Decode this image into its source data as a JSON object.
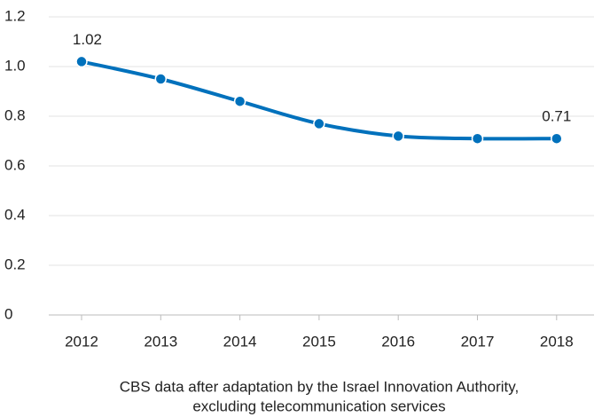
{
  "chart_data": {
    "type": "line",
    "categories": [
      "2012",
      "2013",
      "2014",
      "2015",
      "2016",
      "2017",
      "2018"
    ],
    "series": [
      {
        "color": "#0071bc",
        "values": [
          1.02,
          0.95,
          0.86,
          0.77,
          0.72,
          0.71,
          0.71
        ],
        "value_labels": [
          "1.02",
          null,
          null,
          null,
          null,
          null,
          "0.71"
        ]
      }
    ],
    "ylim": [
      0,
      1.2
    ],
    "yticks": [
      0,
      0.2,
      0.4,
      0.6,
      0.8,
      {
        "value": 1,
        "label": "1.0"
      },
      1.2
    ],
    "grid": true,
    "caption": [
      "CBS data after adaptation by the Israel Innovation Authority,",
      "excluding telecommunication services"
    ]
  }
}
